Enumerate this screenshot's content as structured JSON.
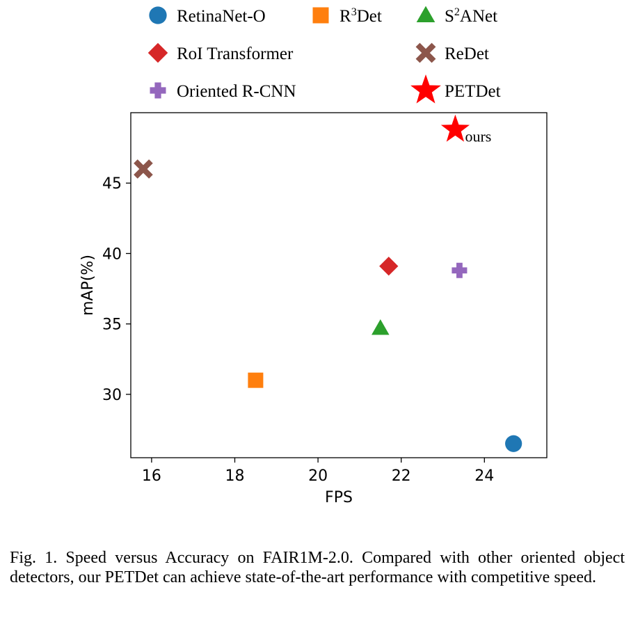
{
  "chart_data": {
    "type": "scatter",
    "xlabel": "FPS",
    "ylabel": "mAP(%)",
    "xlim": [
      15.5,
      25.5
    ],
    "ylim": [
      25.5,
      50.0
    ],
    "xticks": [
      16,
      18,
      20,
      22,
      24
    ],
    "yticks": [
      30,
      35,
      40,
      45
    ],
    "legend_position": "top",
    "points": [
      {
        "name": "RetinaNet-O",
        "name_parts": [
          "RetinaNet-O"
        ],
        "x": 24.7,
        "y": 26.5,
        "marker": "circle",
        "color": "#1f77b4"
      },
      {
        "name": "R3Det",
        "name_parts": [
          "R",
          "3",
          "Det"
        ],
        "x": 18.5,
        "y": 31.0,
        "marker": "square",
        "color": "#ff7f0e"
      },
      {
        "name": "S2ANet",
        "name_parts": [
          "S",
          "2",
          "ANet"
        ],
        "x": 21.5,
        "y": 34.7,
        "marker": "triangle",
        "color": "#2ca02c"
      },
      {
        "name": "RoI Transformer",
        "name_parts": [
          "RoI Transformer"
        ],
        "x": 21.7,
        "y": 39.1,
        "marker": "diamond",
        "color": "#d62728"
      },
      {
        "name": "ReDet",
        "name_parts": [
          "ReDet"
        ],
        "x": 15.8,
        "y": 46.0,
        "marker": "x",
        "color": "#8c564b"
      },
      {
        "name": "Oriented R-CNN",
        "name_parts": [
          "Oriented R-CNN"
        ],
        "x": 23.4,
        "y": 38.8,
        "marker": "plus",
        "color": "#9467bd"
      },
      {
        "name": "PETDet",
        "name_parts": [
          "PETDet"
        ],
        "x": 23.3,
        "y": 48.8,
        "marker": "star",
        "color": "#ff0000",
        "annotation": "ours"
      }
    ]
  },
  "caption": "Fig. 1.  Speed versus Accuracy on FAIR1M-2.0. Compared with other oriented object detectors, our PETDet can achieve state-of-the-art performance with competitive speed."
}
